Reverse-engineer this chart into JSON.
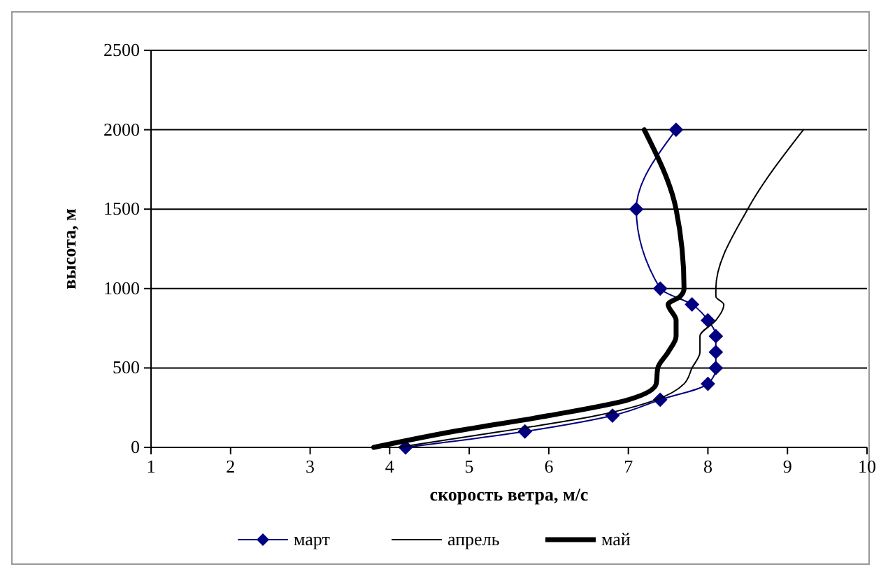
{
  "chart_data": {
    "type": "line",
    "xlabel": "скорость ветра, м/с",
    "ylabel": "высота, м",
    "xlim": [
      1,
      10
    ],
    "xticks": [
      1,
      2,
      3,
      4,
      5,
      6,
      7,
      8,
      9,
      10
    ],
    "ylim": [
      0,
      2500
    ],
    "yticks": [
      0,
      500,
      1000,
      1500,
      2000,
      2500
    ],
    "grid": "y",
    "legend": "bottom",
    "series": [
      {
        "name": "март",
        "color": "#000080",
        "marker": "diamond",
        "x": [
          4.2,
          5.7,
          6.8,
          7.4,
          8.0,
          8.1,
          8.1,
          8.1,
          8.0,
          7.8,
          7.4,
          7.1,
          7.6
        ],
        "values": [
          0,
          100,
          200,
          300,
          400,
          500,
          600,
          700,
          800,
          900,
          1000,
          1500,
          2000
        ]
      },
      {
        "name": "апрель",
        "color": "#000000",
        "marker": "none",
        "x": [
          4.1,
          5.4,
          6.6,
          7.35,
          7.7,
          7.8,
          7.9,
          7.9,
          8.1,
          8.2,
          8.1,
          8.1,
          8.5,
          9.2
        ],
        "values": [
          0,
          100,
          200,
          300,
          400,
          500,
          600,
          700,
          800,
          900,
          950,
          1000,
          1500,
          2000
        ]
      },
      {
        "name": "май",
        "color": "#000000",
        "marker": "none",
        "x": [
          3.8,
          4.8,
          6.0,
          7.0,
          7.35,
          7.37,
          7.5,
          7.6,
          7.6,
          7.5,
          7.65,
          7.7,
          7.6,
          7.2
        ],
        "values": [
          0,
          100,
          200,
          300,
          400,
          500,
          600,
          700,
          800,
          900,
          950,
          1000,
          1500,
          2000
        ]
      }
    ]
  }
}
